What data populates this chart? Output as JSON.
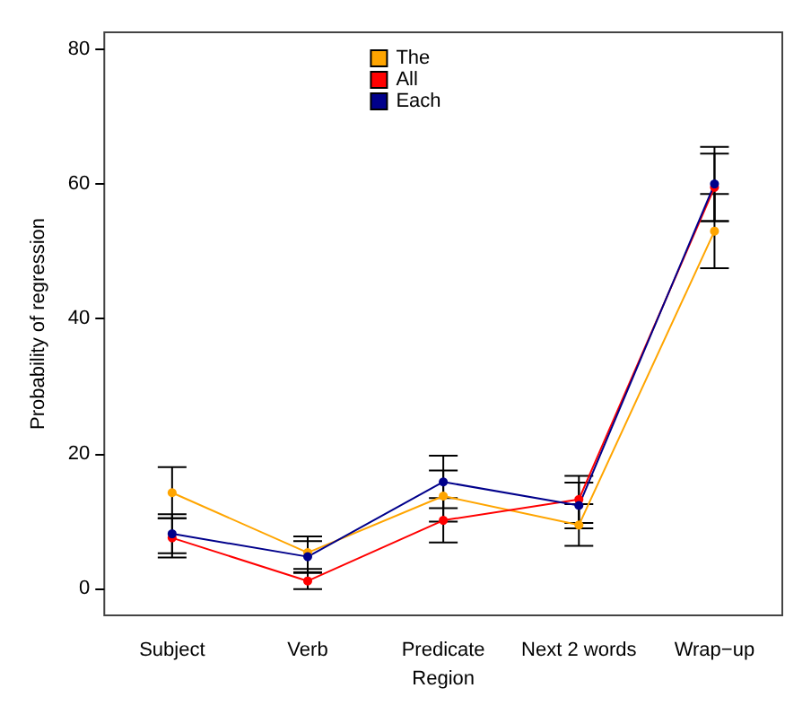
{
  "chart_data": {
    "type": "line",
    "xlabel": "Region",
    "ylabel": "Probability of regression",
    "categories": [
      "Subject",
      "Verb",
      "Predicate",
      "Next 2 words",
      "Wrap−up"
    ],
    "series": [
      {
        "name": "The",
        "color": "#ffa500",
        "values": [
          14.2,
          5.3,
          13.7,
          9.4,
          53
        ],
        "errors": [
          3.8,
          2.4,
          3.8,
          3.1,
          5.5
        ]
      },
      {
        "name": "All",
        "color": "#ff0000",
        "values": [
          7.5,
          1.1,
          10.1,
          13.2,
          59.5
        ],
        "errors": [
          2.9,
          1.2,
          3.3,
          3.5,
          5
        ]
      },
      {
        "name": "Each",
        "color": "#00008b",
        "values": [
          8.1,
          4.7,
          15.8,
          12.3,
          60
        ],
        "errors": [
          2.9,
          2.3,
          3.9,
          3.4,
          5.5
        ]
      }
    ],
    "ylim": [
      -4,
      82.5
    ],
    "yticks": [
      0,
      20,
      40,
      60,
      80
    ],
    "grid": false,
    "legend": "top",
    "marker": "circle",
    "line_style": "solid"
  }
}
